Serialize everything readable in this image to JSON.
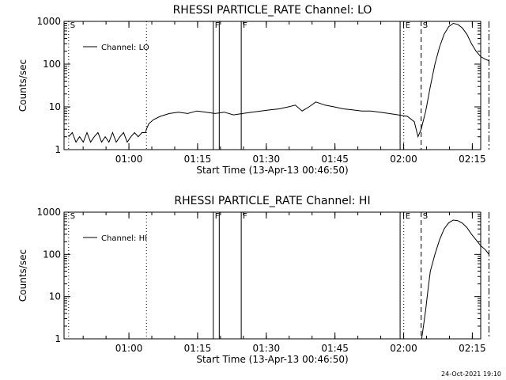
{
  "footer_timestamp": "24-Oct-2021 19:10",
  "chart_data": [
    {
      "type": "line",
      "title": "RHESSI PARTICLE_RATE Channel: LO",
      "xlabel": "Start Time (13-Apr-13 00:46:50)",
      "ylabel": "Counts/sec",
      "x_range_minutes": [
        -1,
        90
      ],
      "y_scale": "log",
      "ylim": [
        1,
        1000
      ],
      "y_tick_labels": [
        "1",
        "10",
        "100",
        "1000"
      ],
      "x_tick_labels": [
        "01:00",
        "01:15",
        "01:30",
        "01:45",
        "02:00",
        "02:15"
      ],
      "x_tick_minutes": [
        13.17,
        28.17,
        43.17,
        58.17,
        73.17,
        88.17
      ],
      "legend": "Channel: LO",
      "legend_position": "top-left",
      "flag_markers": [
        {
          "label": "S",
          "minute": 0,
          "style": "dotted"
        },
        {
          "label": "",
          "minute": 17.0,
          "style": "dotted"
        },
        {
          "label": "F",
          "minute": 31.6,
          "style": "solid"
        },
        {
          "label": "",
          "minute": 32.9,
          "style": "solid"
        },
        {
          "label": "F",
          "minute": 37.7,
          "style": "solid"
        },
        {
          "label": "",
          "minute": 72.4,
          "style": "solid"
        },
        {
          "label": "E",
          "minute": 73.2,
          "style": "dotted"
        },
        {
          "label": "S",
          "minute": 77.0,
          "style": "dashed"
        },
        {
          "label": "",
          "minute": 91.8,
          "style": "dashdot"
        }
      ],
      "series": [
        {
          "x": [
            0,
            0.8,
            1.6,
            2.4,
            3.2,
            4.0,
            4.8,
            5.6,
            6.4,
            7.2,
            8.0,
            8.8,
            9.6,
            10.4,
            11.2,
            12.0,
            12.8,
            13.6,
            14.4,
            15.2,
            16.0,
            16.8,
            17.0,
            17.5,
            18.5,
            20,
            22,
            24,
            26,
            28,
            30,
            32,
            34,
            36,
            38,
            40,
            42,
            44,
            46,
            48,
            49.5,
            51,
            52.5,
            54,
            56,
            58,
            60,
            62,
            64,
            66,
            68,
            70,
            72,
            74,
            75.5,
            76.3,
            77,
            78,
            79,
            80,
            81,
            82,
            83,
            84,
            85,
            86,
            87,
            88,
            89,
            90,
            91,
            91.8
          ],
          "y": [
            2,
            2.5,
            1.5,
            2,
            1.5,
            2.5,
            1.5,
            2,
            2.5,
            1.5,
            2,
            1.5,
            2.5,
            1.5,
            2,
            2.5,
            1.5,
            2,
            2.5,
            2,
            2.5,
            2.5,
            3,
            4,
            5,
            6,
            7,
            7.5,
            7,
            8,
            7.5,
            7,
            7.5,
            6.5,
            7,
            7.5,
            8,
            8.5,
            9,
            10,
            11,
            8,
            10,
            13,
            11,
            10,
            9,
            8.5,
            8,
            8,
            7.5,
            7,
            6.5,
            6,
            4.5,
            2,
            3,
            8,
            30,
            100,
            250,
            500,
            750,
            900,
            850,
            700,
            500,
            300,
            200,
            150,
            130,
            120
          ]
        }
      ]
    },
    {
      "type": "line",
      "title": "RHESSI PARTICLE_RATE Channel: HI",
      "xlabel": "Start Time (13-Apr-13 00:46:50)",
      "ylabel": "Counts/sec",
      "x_range_minutes": [
        -1,
        90
      ],
      "y_scale": "log",
      "ylim": [
        1,
        1000
      ],
      "y_tick_labels": [
        "1",
        "10",
        "100",
        "1000"
      ],
      "x_tick_labels": [
        "01:00",
        "01:15",
        "01:30",
        "01:45",
        "02:00",
        "02:15"
      ],
      "x_tick_minutes": [
        13.17,
        28.17,
        43.17,
        58.17,
        73.17,
        88.17
      ],
      "legend": "Channel: HI",
      "legend_position": "top-left",
      "flag_markers": [
        {
          "label": "S",
          "minute": 0,
          "style": "dotted"
        },
        {
          "label": "",
          "minute": 17.0,
          "style": "dotted"
        },
        {
          "label": "F",
          "minute": 31.6,
          "style": "solid"
        },
        {
          "label": "",
          "minute": 32.9,
          "style": "solid"
        },
        {
          "label": "F",
          "minute": 37.7,
          "style": "solid"
        },
        {
          "label": "",
          "minute": 72.4,
          "style": "solid"
        },
        {
          "label": "E",
          "minute": 73.2,
          "style": "dotted"
        },
        {
          "label": "S",
          "minute": 77.0,
          "style": "dashed"
        },
        {
          "label": "",
          "minute": 91.8,
          "style": "dashdot"
        }
      ],
      "series": [
        {
          "x": [
            77.1,
            77.5,
            78,
            78.5,
            79,
            80,
            81,
            82,
            83,
            84,
            85,
            86,
            87,
            88,
            89,
            90,
            91,
            91.8
          ],
          "y": [
            1,
            2,
            5,
            15,
            40,
            100,
            220,
            400,
            560,
            650,
            630,
            550,
            430,
            300,
            220,
            160,
            130,
            100
          ]
        }
      ]
    }
  ]
}
